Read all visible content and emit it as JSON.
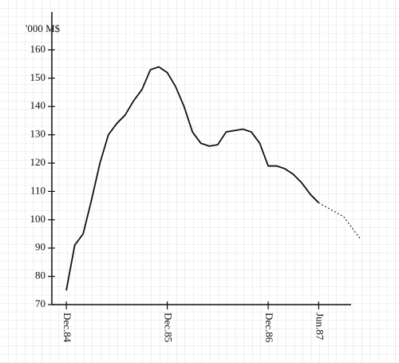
{
  "chart_data": {
    "type": "line",
    "ylabel": "'000 M$",
    "x": [
      0,
      1,
      2,
      3,
      4,
      5,
      6,
      7,
      8,
      9,
      10,
      11,
      12,
      13,
      14,
      15,
      16,
      17,
      18,
      19,
      20,
      21,
      22,
      23,
      24,
      25,
      26,
      27,
      28,
      29,
      30,
      33,
      35
    ],
    "series": [
      {
        "color": "#111111",
        "style": "solid",
        "values": [
          75,
          91,
          95,
          107,
          120,
          130,
          134,
          137,
          142,
          146,
          153,
          154,
          152,
          147,
          140,
          131,
          127,
          126,
          126.5,
          131,
          131.5,
          132,
          131,
          127,
          119,
          119,
          118,
          116,
          113,
          109,
          106,
          null,
          null
        ]
      },
      {
        "color": "#333333",
        "style": "dotted",
        "values": [
          null,
          null,
          null,
          null,
          null,
          null,
          null,
          null,
          null,
          null,
          null,
          null,
          null,
          null,
          null,
          null,
          null,
          null,
          null,
          null,
          null,
          null,
          null,
          null,
          null,
          null,
          null,
          null,
          null,
          null,
          106,
          101,
          93
        ]
      }
    ],
    "xlim": [
      -2,
      35
    ],
    "xticks": [
      {
        "value": 0,
        "label": "Dec.84"
      },
      {
        "value": 12,
        "label": "Dec.85"
      },
      {
        "value": 24,
        "label": "Dec.86"
      },
      {
        "value": 30,
        "label": "Jun.87"
      }
    ],
    "ylim": [
      70,
      170
    ],
    "yticks": [
      70,
      80,
      90,
      100,
      110,
      120,
      130,
      140,
      150,
      160
    ]
  }
}
